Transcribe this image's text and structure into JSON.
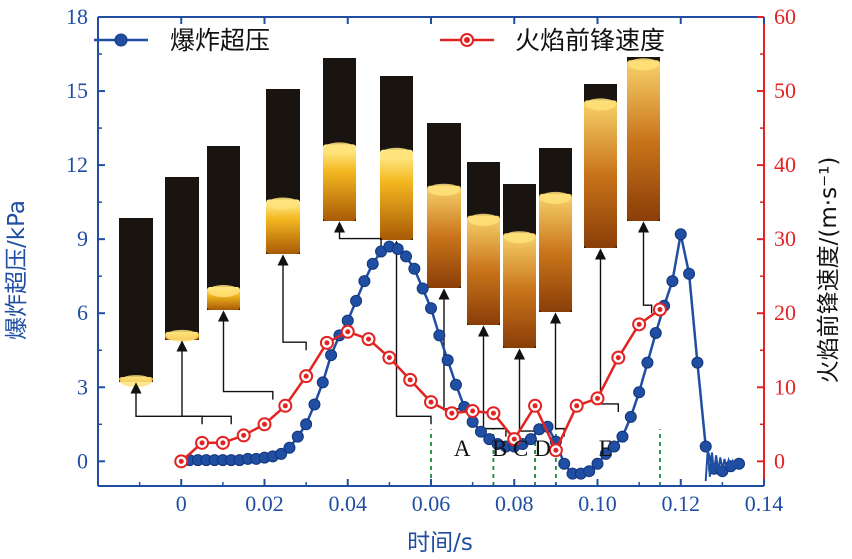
{
  "chart_data": {
    "type": "line",
    "x_label": "时间/s",
    "y_left_label": "爆炸超压/kPa",
    "y_right_label": "火焰前锋速度/(m·s⁻¹)",
    "x_range": [
      -0.02,
      0.14
    ],
    "y_left_range": [
      -1,
      18
    ],
    "y_right_range": [
      -3.33,
      60
    ],
    "x_ticks": [
      "0",
      "0.02",
      "0.04",
      "0.06",
      "0.08",
      "0.10",
      "0.12",
      "0.14"
    ],
    "x_tick_values": [
      0,
      0.02,
      0.04,
      0.06,
      0.08,
      0.1,
      0.12,
      0.14
    ],
    "y_left_ticks": [
      "0",
      "3",
      "6",
      "9",
      "12",
      "15",
      "18"
    ],
    "y_left_tick_values": [
      0,
      3,
      6,
      9,
      12,
      15,
      18
    ],
    "y_right_ticks": [
      "0",
      "10",
      "20",
      "30",
      "40",
      "50",
      "60"
    ],
    "y_right_tick_values": [
      0,
      10,
      20,
      30,
      40,
      50,
      60
    ],
    "region_labels": [
      {
        "text": "A",
        "x": 0.0675
      },
      {
        "text": "B",
        "x": 0.0765
      },
      {
        "text": "C",
        "x": 0.0815
      },
      {
        "text": "D",
        "x": 0.0868
      },
      {
        "text": "E",
        "x": 0.102
      }
    ],
    "dashed_lines_x": [
      0.06,
      0.075,
      0.085,
      0.09,
      0.115
    ],
    "series": [
      {
        "name": "爆炸超压",
        "axis": "left",
        "color": "#1f4ea3",
        "points": [
          [
            0.0,
            0.0
          ],
          [
            0.002,
            0.05
          ],
          [
            0.004,
            0.05
          ],
          [
            0.006,
            0.05
          ],
          [
            0.008,
            0.05
          ],
          [
            0.01,
            0.05
          ],
          [
            0.012,
            0.05
          ],
          [
            0.014,
            0.05
          ],
          [
            0.016,
            0.1
          ],
          [
            0.018,
            0.1
          ],
          [
            0.02,
            0.15
          ],
          [
            0.022,
            0.2
          ],
          [
            0.024,
            0.3
          ],
          [
            0.026,
            0.55
          ],
          [
            0.028,
            1.0
          ],
          [
            0.03,
            1.5
          ],
          [
            0.032,
            2.3
          ],
          [
            0.034,
            3.2
          ],
          [
            0.036,
            4.3
          ],
          [
            0.038,
            5.1
          ],
          [
            0.04,
            5.7
          ],
          [
            0.042,
            6.5
          ],
          [
            0.044,
            7.3
          ],
          [
            0.046,
            8.0
          ],
          [
            0.048,
            8.5
          ],
          [
            0.05,
            8.7
          ],
          [
            0.052,
            8.6
          ],
          [
            0.054,
            8.3
          ],
          [
            0.056,
            7.8
          ],
          [
            0.058,
            7.0
          ],
          [
            0.06,
            6.2
          ],
          [
            0.062,
            5.1
          ],
          [
            0.064,
            4.1
          ],
          [
            0.066,
            3.1
          ],
          [
            0.068,
            2.2
          ],
          [
            0.07,
            1.6
          ],
          [
            0.072,
            1.2
          ],
          [
            0.074,
            0.9
          ],
          [
            0.076,
            0.7
          ],
          [
            0.078,
            0.6
          ],
          [
            0.08,
            0.6
          ],
          [
            0.082,
            0.7
          ],
          [
            0.084,
            0.9
          ],
          [
            0.086,
            1.3
          ],
          [
            0.088,
            1.4
          ],
          [
            0.09,
            0.8
          ],
          [
            0.092,
            -0.1
          ],
          [
            0.094,
            -0.5
          ],
          [
            0.096,
            -0.5
          ],
          [
            0.098,
            -0.4
          ],
          [
            0.1,
            -0.1
          ],
          [
            0.102,
            0.3
          ],
          [
            0.104,
            0.6
          ],
          [
            0.106,
            1.0
          ],
          [
            0.108,
            1.8
          ],
          [
            0.11,
            2.8
          ],
          [
            0.112,
            4.0
          ],
          [
            0.114,
            5.2
          ],
          [
            0.116,
            6.3
          ],
          [
            0.118,
            7.3
          ],
          [
            0.12,
            9.2
          ],
          [
            0.122,
            7.6
          ],
          [
            0.124,
            4.0
          ],
          [
            0.126,
            0.6
          ],
          [
            0.128,
            -0.3
          ],
          [
            0.13,
            -0.4
          ],
          [
            0.132,
            -0.2
          ],
          [
            0.134,
            -0.1
          ]
        ]
      },
      {
        "name": "火焰前锋速度",
        "axis": "right",
        "color": "#e32222",
        "points": [
          [
            0.0,
            0.0
          ],
          [
            0.005,
            2.5
          ],
          [
            0.01,
            2.5
          ],
          [
            0.015,
            3.5
          ],
          [
            0.02,
            5.0
          ],
          [
            0.025,
            7.5
          ],
          [
            0.03,
            11.5
          ],
          [
            0.035,
            16.0
          ],
          [
            0.04,
            17.5
          ],
          [
            0.045,
            16.5
          ],
          [
            0.05,
            14.0
          ],
          [
            0.055,
            11.0
          ],
          [
            0.06,
            8.0
          ],
          [
            0.065,
            6.5
          ],
          [
            0.07,
            6.8
          ],
          [
            0.075,
            6.5
          ],
          [
            0.08,
            3.0
          ],
          [
            0.085,
            7.5
          ],
          [
            0.09,
            1.5
          ],
          [
            0.095,
            7.5
          ],
          [
            0.1,
            8.5
          ],
          [
            0.105,
            14.0
          ],
          [
            0.11,
            18.5
          ],
          [
            0.115,
            20.5
          ]
        ]
      }
    ],
    "insets": [
      {
        "flame_x": 0.005,
        "flame_y": 1.5
      },
      {
        "flame_x": 0.012,
        "flame_y": 1.5
      },
      {
        "flame_x": 0.022,
        "flame_y": 2.5
      },
      {
        "flame_x": 0.03,
        "flame_y": 4.5
      },
      {
        "flame_x": 0.048,
        "flame_y": 8.7
      },
      {
        "flame_x": 0.06,
        "flame_y": 1.5
      },
      {
        "flame_x": 0.07,
        "flame_y": 1.8
      },
      {
        "flame_x": 0.078,
        "flame_y": 1.0
      },
      {
        "flame_x": 0.085,
        "flame_y": 0.9
      },
      {
        "flame_x": 0.092,
        "flame_y": 1.0
      },
      {
        "flame_x": 0.105,
        "flame_y": 2.0
      },
      {
        "flame_x": 0.113,
        "flame_y": 6.0
      }
    ]
  }
}
